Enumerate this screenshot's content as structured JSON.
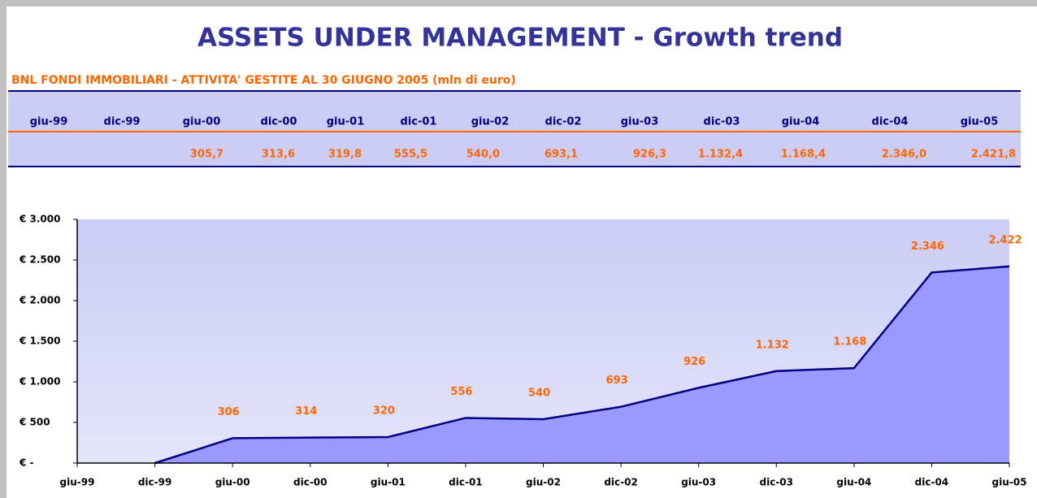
{
  "header": {
    "title": "ASSETS UNDER MANAGEMENT - Growth trend",
    "subtitle": "BNL FONDI IMMOBILIARI - ATTIVITA' GESTITE AL 30 GIUGNO 2005 (mln di euro)"
  },
  "table": {
    "values": [
      null,
      null,
      "305,7",
      "313,6",
      "319,8",
      "555,5",
      "540,0",
      "693,1",
      "926,3",
      "1.132,4",
      "1.168,4",
      "2.346,0",
      "2.421,8"
    ]
  },
  "chart_data": {
    "type": "area",
    "categories": [
      "giu-99",
      "dic-99",
      "giu-00",
      "dic-00",
      "giu-01",
      "dic-01",
      "giu-02",
      "dic-02",
      "giu-03",
      "dic-03",
      "giu-04",
      "dic-04",
      "giu-05"
    ],
    "values": [
      null,
      0,
      305.7,
      313.6,
      319.8,
      555.5,
      540.0,
      693.1,
      926.3,
      1132.4,
      1168.4,
      2346.0,
      2421.8
    ],
    "value_labels": [
      null,
      null,
      "306",
      "314",
      "320",
      "556",
      "540",
      "693",
      "926",
      "1.132",
      "1.168",
      "2.346",
      "2.422"
    ],
    "color": "#9999ff",
    "line_color": "#000080",
    "ylim": [
      0,
      3000
    ],
    "yticks": [
      {
        "value": 0,
        "label": "€ -"
      },
      {
        "value": 500,
        "label": "€ 500"
      },
      {
        "value": 1000,
        "label": "€ 1.000"
      },
      {
        "value": 1500,
        "label": "€ 1.500"
      },
      {
        "value": 2000,
        "label": "€ 2.000"
      },
      {
        "value": 2500,
        "label": "€ 2.500"
      },
      {
        "value": 3000,
        "label": "€ 3.000"
      }
    ]
  }
}
